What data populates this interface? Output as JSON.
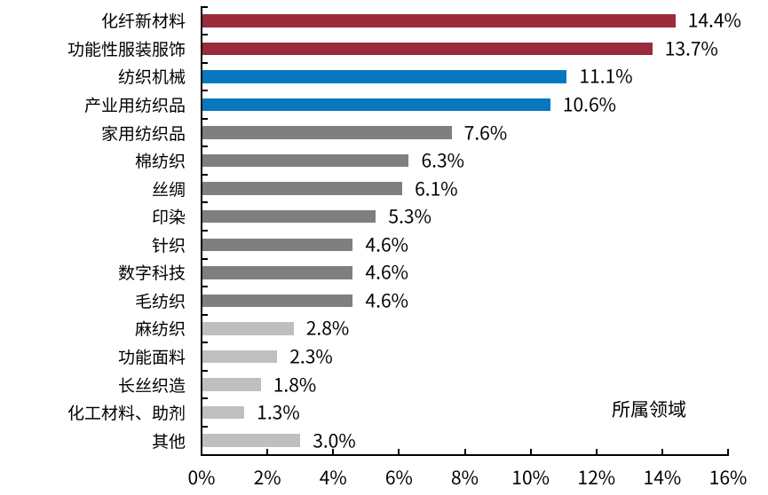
{
  "chart_data": {
    "type": "bar",
    "orientation": "horizontal",
    "categories": [
      "化纤新材料",
      "功能性服装服饰",
      "纺织机械",
      "产业用纺织品",
      "家用纺织品",
      "棉纺织",
      "丝绸",
      "印染",
      "针织",
      "数字科技",
      "毛纺织",
      "麻纺织",
      "功能面料",
      "长丝织造",
      "化工材料、助剂",
      "其他"
    ],
    "values": [
      14.4,
      13.7,
      11.1,
      10.6,
      7.6,
      6.3,
      6.1,
      5.3,
      4.6,
      4.6,
      4.6,
      2.8,
      2.3,
      1.8,
      1.3,
      3.0
    ],
    "value_labels": [
      "14.4%",
      "13.7%",
      "11.1%",
      "10.6%",
      "7.6%",
      "6.3%",
      "6.1%",
      "5.3%",
      "4.6%",
      "4.6%",
      "4.6%",
      "2.8%",
      "2.3%",
      "1.8%",
      "1.3%",
      "3.0%"
    ],
    "bar_colors": [
      "#992B3D",
      "#992B3D",
      "#0878BE",
      "#0878BE",
      "#7F7F7F",
      "#7F7F7F",
      "#7F7F7F",
      "#7F7F7F",
      "#7F7F7F",
      "#7F7F7F",
      "#7F7F7F",
      "#BFBFBF",
      "#BFBFBF",
      "#BFBFBF",
      "#BFBFBF",
      "#BFBFBF"
    ],
    "x_tick_labels": [
      "0%",
      "2%",
      "4%",
      "6%",
      "8%",
      "10%",
      "12%",
      "14%",
      "16%"
    ],
    "xlim": [
      0,
      16
    ],
    "x_tick_step": 2,
    "grid": "off",
    "legend": "none",
    "annotation": "所属领域",
    "colors": {
      "highlight_red": "#992B3D",
      "highlight_blue": "#0878BE",
      "gray": "#7F7F7F",
      "light_gray": "#BFBFBF",
      "axis": "#000000",
      "text": "#000000",
      "background": "#FFFFFF"
    }
  }
}
